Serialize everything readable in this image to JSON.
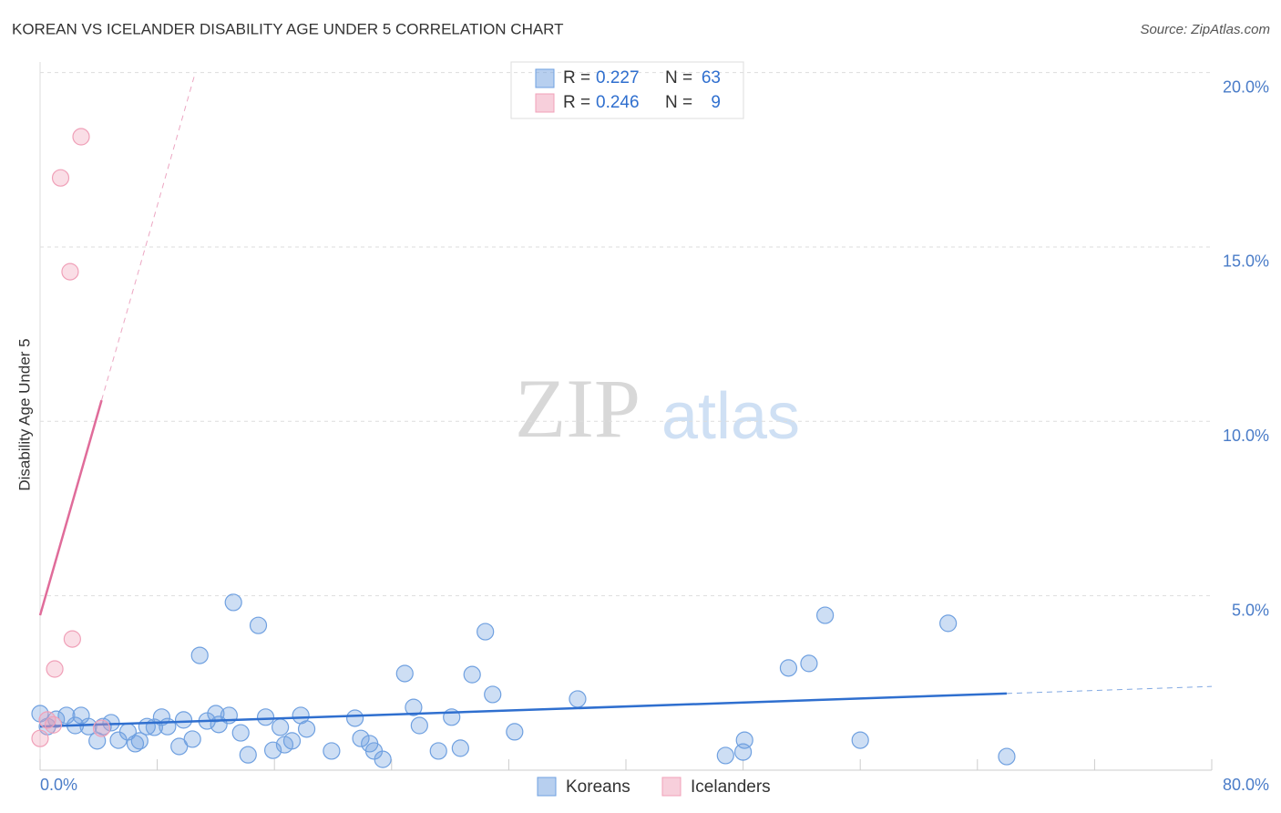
{
  "chart_data": {
    "type": "scatter",
    "title": "KOREAN VS ICELANDER DISABILITY AGE UNDER 5 CORRELATION CHART",
    "source": "Source: ZipAtlas.com",
    "y_label": "Disability Age Under 5",
    "watermark": [
      "ZIP",
      "atlas"
    ],
    "r_label": "R =",
    "n_label": "N =",
    "xlim": [
      0,
      80
    ],
    "ylim": [
      0,
      20.3
    ],
    "xticks": [
      {
        "value": 0,
        "label": "0.0%"
      },
      {
        "value": 80,
        "label": "80.0%"
      }
    ],
    "xminor_ticks": [
      8,
      16,
      24,
      32,
      40,
      48,
      56,
      64,
      72
    ],
    "yticks": [
      {
        "value": 5,
        "label": "5.0%"
      },
      {
        "value": 10,
        "label": "10.0%"
      },
      {
        "value": 15,
        "label": "15.0%"
      },
      {
        "value": 20,
        "label": "20.0%"
      }
    ],
    "grid": true,
    "series": [
      {
        "name": "Koreans",
        "color": "#6fa0e0",
        "line_color": "#2f6fcf",
        "r": 0.227,
        "n": 63,
        "x": [
          0,
          0.5,
          1.1,
          1.8,
          2.4,
          2.8,
          3.3,
          3.9,
          4.3,
          4.85,
          5.35,
          6.0,
          6.5,
          6.8,
          7.3,
          7.8,
          8.3,
          8.7,
          9.5,
          9.8,
          10.4,
          10.9,
          11.4,
          12.0,
          12.2,
          12.9,
          13.2,
          13.7,
          14.2,
          14.9,
          15.4,
          15.9,
          16.4,
          16.7,
          17.2,
          17.8,
          18.2,
          19.9,
          21.5,
          21.9,
          22.5,
          22.8,
          23.4,
          24.9,
          25.5,
          25.9,
          27.2,
          28.1,
          28.7,
          29.5,
          30.4,
          30.9,
          32.4,
          36.7,
          46.8,
          48.0,
          48.1,
          51.1,
          52.5,
          53.6,
          56.0,
          62.0,
          66.0
        ],
        "values": [
          1.62,
          1.25,
          1.46,
          1.57,
          1.28,
          1.57,
          1.25,
          0.84,
          1.25,
          1.36,
          0.86,
          1.1,
          0.76,
          0.84,
          1.25,
          1.23,
          1.52,
          1.25,
          0.68,
          1.44,
          0.89,
          3.29,
          1.41,
          1.62,
          1.31,
          1.57,
          4.81,
          1.07,
          0.44,
          4.15,
          1.52,
          0.57,
          1.23,
          0.73,
          0.84,
          1.57,
          1.18,
          0.55,
          1.49,
          0.91,
          0.76,
          0.55,
          0.31,
          2.77,
          1.8,
          1.28,
          0.55,
          1.52,
          0.63,
          2.74,
          3.97,
          2.17,
          1.1,
          2.04,
          0.42,
          0.52,
          0.86,
          2.93,
          3.06,
          4.44,
          0.86,
          4.21,
          0.39
        ],
        "trend_x": [
          0,
          80
        ],
        "trend_y": [
          1.25,
          2.4
        ]
      },
      {
        "name": "Icelanders",
        "color": "#f0a0b8",
        "line_color": "#e06c9a",
        "r": 0.246,
        "n": 9,
        "x": [
          0,
          0.5,
          0.9,
          1.0,
          1.4,
          2.05,
          2.2,
          2.8,
          4.2
        ],
        "values": [
          0.91,
          1.44,
          1.3,
          2.9,
          16.98,
          14.29,
          3.76,
          18.16,
          1.2
        ],
        "trend_x": [
          0,
          10.6
        ],
        "trend_y": [
          4.44,
          20.0
        ]
      }
    ]
  }
}
